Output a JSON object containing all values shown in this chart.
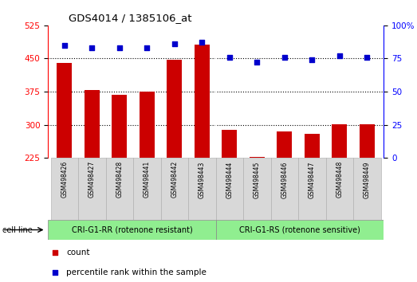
{
  "title": "GDS4014 / 1385106_at",
  "samples": [
    "GSM498426",
    "GSM498427",
    "GSM498428",
    "GSM498441",
    "GSM498442",
    "GSM498443",
    "GSM498444",
    "GSM498445",
    "GSM498446",
    "GSM498447",
    "GSM498448",
    "GSM498449"
  ],
  "counts": [
    440,
    378,
    368,
    375,
    447,
    482,
    288,
    228,
    285,
    280,
    302,
    302
  ],
  "percentiles": [
    85,
    83,
    83,
    83,
    86,
    87,
    76,
    72,
    76,
    74,
    77,
    76
  ],
  "group1_label": "CRI-G1-RR (rotenone resistant)",
  "group2_label": "CRI-G1-RS (rotenone sensitive)",
  "group1_count": 6,
  "group2_count": 6,
  "ylim_left": [
    225,
    525
  ],
  "ylim_right": [
    0,
    100
  ],
  "yticks_left": [
    225,
    300,
    375,
    450,
    525
  ],
  "yticks_right": [
    0,
    25,
    50,
    75,
    100
  ],
  "bar_color": "#cc0000",
  "dot_color": "#0000cc",
  "group_bg": "#90ee90",
  "cell_line_label": "cell line",
  "legend_count_label": "count",
  "legend_pct_label": "percentile rank within the sample",
  "bg_plot": "#ffffff",
  "grid_dotted_at": [
    300,
    375,
    450
  ],
  "bar_width": 0.55
}
